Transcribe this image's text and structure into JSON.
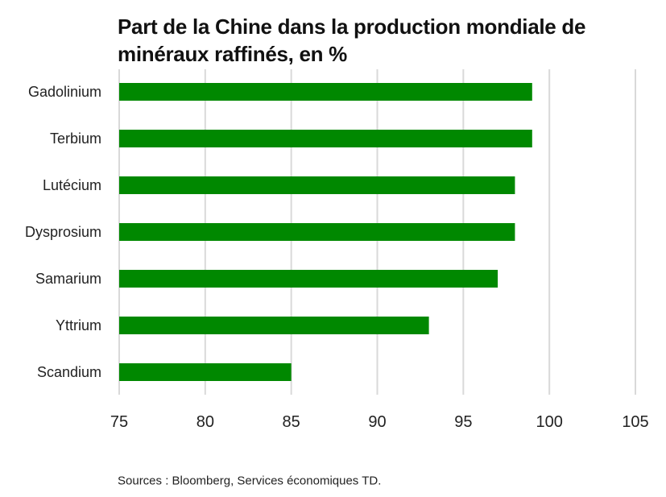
{
  "chart_data": {
    "type": "bar",
    "orientation": "horizontal",
    "title": "Part de la Chine dans la production mondiale de minéraux raffinés, en %",
    "categories": [
      "Gadolinium",
      "Terbium",
      "Lutécium",
      "Dysprosium",
      "Samarium",
      "Yttrium",
      "Scandium"
    ],
    "values": [
      99,
      99,
      98,
      98,
      97,
      93,
      85
    ],
    "xlim": [
      75,
      105
    ],
    "xticks": [
      "75",
      "80",
      "85",
      "90",
      "95",
      "100",
      "105"
    ],
    "xlabel": "",
    "ylabel": "",
    "grid": "vertical",
    "bar_color": "#008800",
    "grid_color": "#d9d9d9"
  },
  "source": "Sources : Bloomberg, Services économiques TD."
}
